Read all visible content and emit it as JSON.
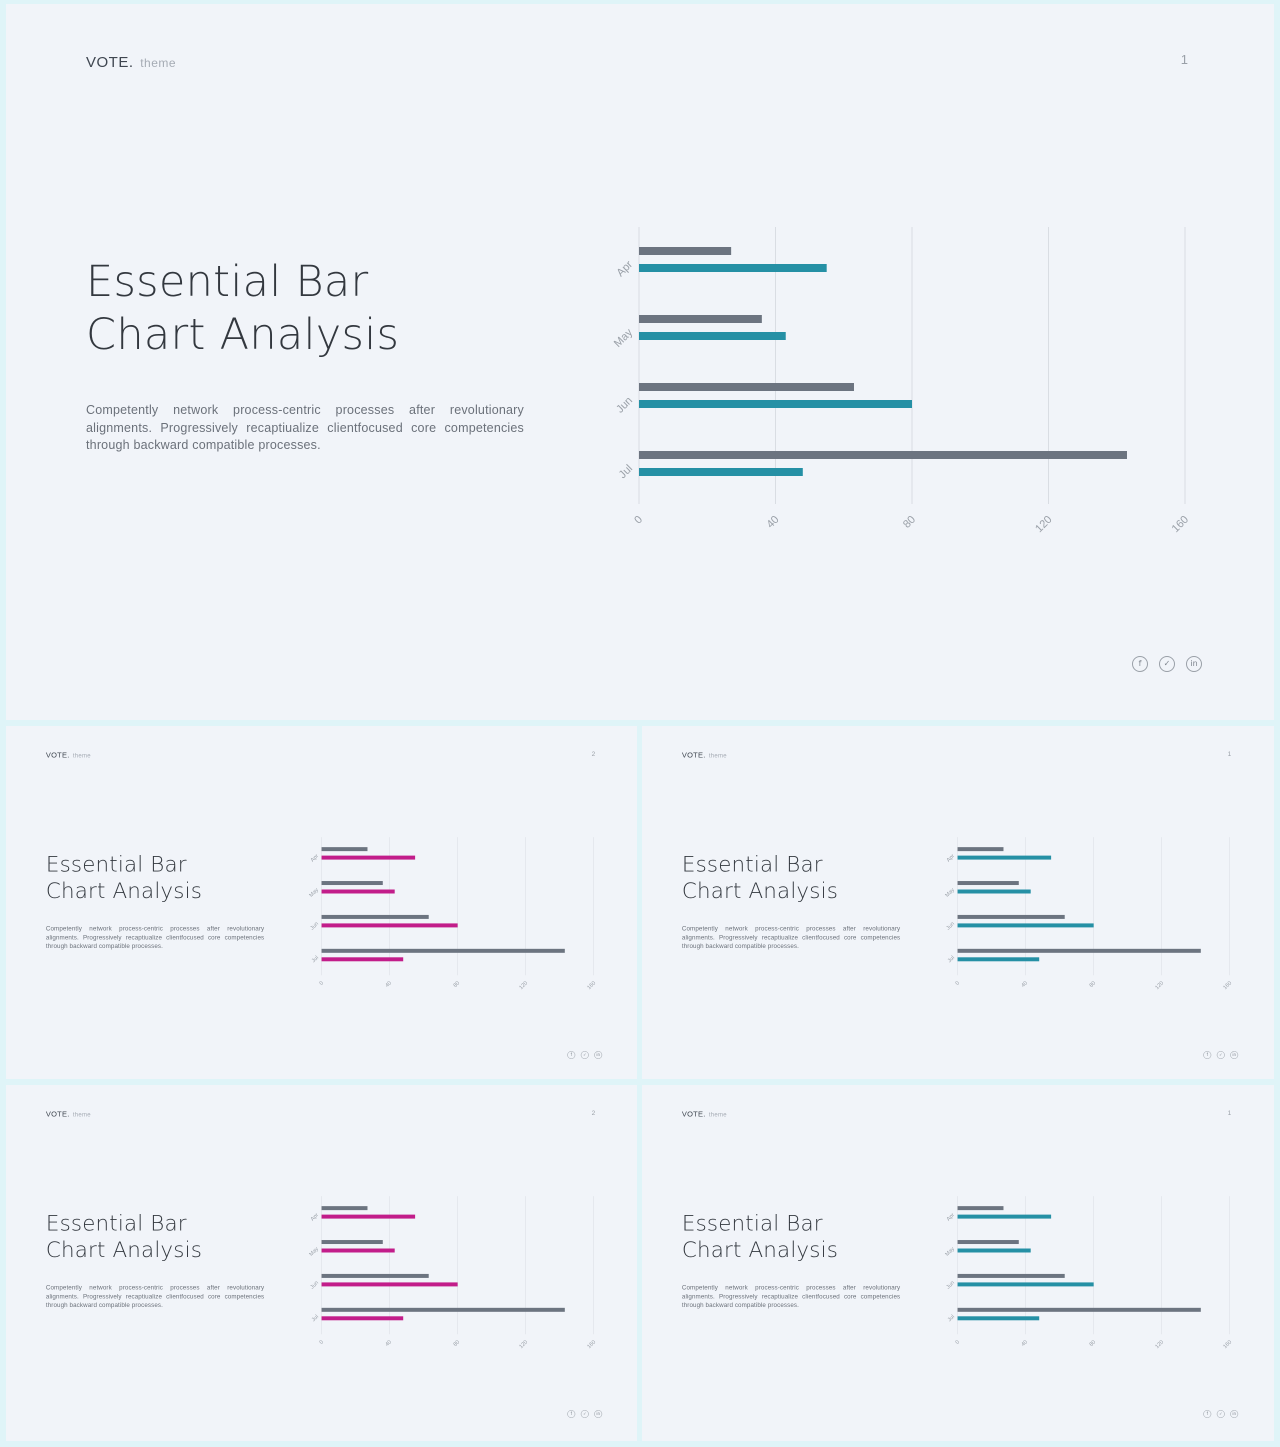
{
  "brand": {
    "name": "VOTE.",
    "sub": "theme"
  },
  "title_line1": "Essential Bar",
  "title_line2": "Chart Analysis",
  "description": "Competently network process-centric processes after revolutionary alignments. Progressively recaptiualize clientfocused core competencies through backward compatible processes.",
  "social": [
    {
      "icon": "facebook-icon",
      "glyph": "f"
    },
    {
      "icon": "twitter-icon",
      "glyph": "✓"
    },
    {
      "icon": "linkedin-icon",
      "glyph": "in"
    }
  ],
  "colors": {
    "series_gray": "#6c7480",
    "teal": "#2590a5",
    "magenta": "#c21d8a",
    "grid": "#d9dde3",
    "tick": "#9aa0a8"
  },
  "slides": [
    {
      "page": "1",
      "accent": "#2590a5"
    },
    {
      "page": "2",
      "accent": "#c21d8a"
    },
    {
      "page": "1",
      "accent": "#2590a5"
    },
    {
      "page": "2",
      "accent": "#c21d8a"
    },
    {
      "page": "1",
      "accent": "#2590a5"
    }
  ],
  "chart_data": {
    "type": "bar",
    "orientation": "horizontal",
    "categories": [
      "Apr",
      "May",
      "Jun",
      "Jul"
    ],
    "series": [
      {
        "values": [
          27,
          36,
          63,
          143
        ]
      },
      {
        "values": [
          55,
          43,
          80,
          48
        ]
      }
    ],
    "xlim": [
      0,
      160
    ],
    "xticks": [
      0,
      40,
      80,
      120,
      160
    ],
    "grid": true,
    "legend": "none"
  }
}
